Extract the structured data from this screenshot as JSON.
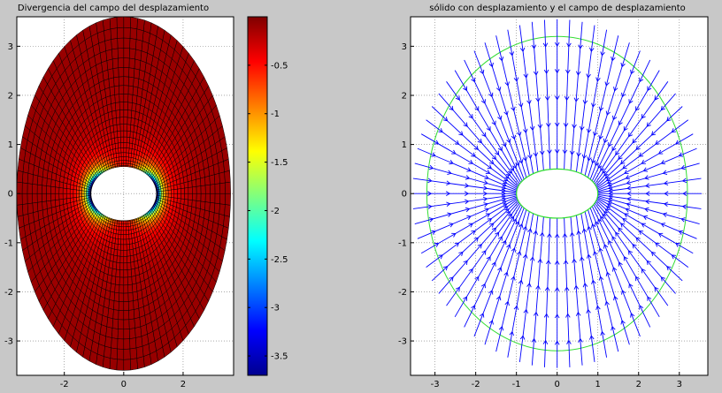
{
  "chart_data": [
    {
      "type": "heatmap",
      "title": "Divergencia del campo del desplazamiento",
      "xlim": [
        -3.6,
        3.7
      ],
      "ylim": [
        -3.7,
        3.6
      ],
      "xticks": [
        -2,
        0,
        2
      ],
      "xtick_labels": [
        "-2",
        "0",
        "2"
      ],
      "yticks": [
        -3,
        -2,
        -1,
        0,
        1,
        2,
        3
      ],
      "ytick_labels": [
        "-3",
        "-2",
        "-1",
        "0",
        "1",
        "2",
        "3"
      ],
      "grid": true,
      "domain": {
        "outer_ellipse": {
          "a": 3.6,
          "b": 3.6
        },
        "inner_ellipse": {
          "a": 1.1,
          "b": 0.55
        }
      },
      "colorbar": {
        "colormap": "jet",
        "range": [
          -3.7,
          0
        ],
        "ticks": [
          -0.5,
          -1,
          -1.5,
          -2,
          -2.5,
          -3,
          -3.5
        ],
        "tick_labels": [
          "-0.5",
          "-1",
          "-1.5",
          "-2",
          "-2.5",
          "-3",
          "-3.5"
        ]
      }
    },
    {
      "type": "scatter",
      "subtype": "quiver",
      "title": "sólido con desplazamiento y el campo de desplazamiento",
      "xlim": [
        -3.6,
        3.7
      ],
      "ylim": [
        -3.7,
        3.6
      ],
      "xticks": [
        -3,
        -2,
        -1,
        0,
        1,
        2,
        3
      ],
      "xtick_labels": [
        "-3",
        "-2",
        "-1",
        "0",
        "1",
        "2",
        "3"
      ],
      "yticks": [
        -3,
        -2,
        -1,
        0,
        1,
        2,
        3
      ],
      "ytick_labels": [
        "-3",
        "-2",
        "-1",
        "0",
        "1",
        "2",
        "3"
      ],
      "grid": true,
      "arrow_color": "#0000ff",
      "ellipse_color": "#33dd33",
      "inner_ellipse": {
        "a": 1.0,
        "b": 0.5
      },
      "green_ellipses": [
        {
          "a": 1.0,
          "b": 0.5
        },
        {
          "a": 3.2,
          "b": 3.2
        }
      ]
    }
  ]
}
